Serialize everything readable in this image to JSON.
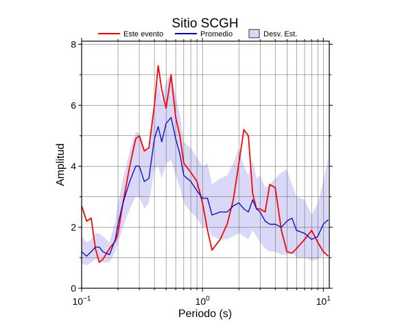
{
  "chart_data": {
    "type": "line",
    "title": "Sitio SCGH",
    "xlabel": "Periodo (s)",
    "ylabel": "Amplitud",
    "xscale": "log",
    "xlim": [
      0.1,
      11.2
    ],
    "ylim": [
      0,
      8.1
    ],
    "grid": true,
    "legend_placement": "top",
    "x_ticks": [
      {
        "value": 0.1,
        "base": "10",
        "exp": "−1"
      },
      {
        "value": 1,
        "base": "10",
        "exp": "0"
      },
      {
        "value": 10,
        "base": "10",
        "exp": "1"
      }
    ],
    "y_ticks": [
      0,
      2,
      4,
      6,
      8
    ],
    "legend": [
      {
        "label": "Este evento",
        "color": "#ff0000",
        "kind": "line"
      },
      {
        "label": "Promedio",
        "color": "#0000cc",
        "kind": "line"
      },
      {
        "label": "Desv. Est.",
        "color": "#d9d9f7",
        "kind": "box"
      }
    ],
    "x": [
      0.1,
      0.11,
      0.12,
      0.13,
      0.14,
      0.15,
      0.17,
      0.19,
      0.2,
      0.22,
      0.25,
      0.28,
      0.3,
      0.33,
      0.36,
      0.4,
      0.43,
      0.46,
      0.5,
      0.55,
      0.6,
      0.65,
      0.7,
      0.8,
      0.9,
      1.0,
      1.1,
      1.2,
      1.4,
      1.6,
      1.8,
      2.0,
      2.2,
      2.4,
      2.6,
      2.8,
      3.0,
      3.3,
      3.6,
      4.0,
      4.5,
      5.0,
      5.5,
      6.0,
      7.0,
      8.0,
      9.0,
      10.0,
      11.0
    ],
    "series": [
      {
        "name": "Este evento",
        "color": "#ff0000",
        "values": [
          2.7,
          2.2,
          2.3,
          1.3,
          0.85,
          0.95,
          1.3,
          1.55,
          1.8,
          2.8,
          4.0,
          4.9,
          5.0,
          4.5,
          4.6,
          6.0,
          7.3,
          6.5,
          5.9,
          7.0,
          5.6,
          5.0,
          4.1,
          3.8,
          3.5,
          2.8,
          1.9,
          1.25,
          1.6,
          2.1,
          2.9,
          4.1,
          5.2,
          5.0,
          3.1,
          2.6,
          2.6,
          2.5,
          3.4,
          3.3,
          1.9,
          1.2,
          1.15,
          1.3,
          1.6,
          1.9,
          1.5,
          1.2,
          1.05
        ]
      },
      {
        "name": "Promedio",
        "color": "#0000cc",
        "values": [
          1.2,
          1.05,
          1.2,
          1.35,
          1.35,
          1.2,
          1.1,
          1.6,
          2.1,
          2.8,
          3.5,
          4.0,
          4.0,
          3.5,
          3.6,
          4.9,
          5.3,
          4.8,
          5.4,
          5.6,
          4.9,
          4.4,
          3.7,
          3.5,
          3.2,
          2.95,
          2.95,
          2.4,
          2.5,
          2.5,
          2.7,
          2.8,
          2.6,
          2.5,
          2.9,
          2.6,
          2.5,
          2.2,
          2.1,
          2.1,
          2.0,
          2.2,
          2.3,
          1.9,
          1.8,
          1.6,
          1.7,
          2.1,
          2.25
        ]
      }
    ],
    "band": {
      "name": "Desv. Est.",
      "color": "#d9d9f7",
      "lower": [
        0.8,
        0.75,
        0.85,
        0.95,
        0.95,
        0.85,
        0.85,
        1.2,
        1.5,
        2.0,
        2.6,
        3.0,
        3.0,
        2.6,
        2.8,
        3.9,
        4.0,
        3.6,
        4.1,
        4.2,
        3.7,
        3.3,
        2.8,
        2.5,
        2.3,
        2.0,
        2.0,
        1.7,
        1.6,
        1.6,
        1.7,
        1.8,
        1.7,
        1.6,
        1.9,
        1.7,
        1.5,
        1.3,
        1.2,
        1.2,
        1.1,
        1.1,
        1.2,
        1.0,
        1.0,
        0.9,
        0.95,
        1.1,
        1.2
      ],
      "upper": [
        1.7,
        1.5,
        1.6,
        1.8,
        1.8,
        1.7,
        1.5,
        2.2,
        2.8,
        3.6,
        4.5,
        5.1,
        5.1,
        4.6,
        4.5,
        6.0,
        6.8,
        6.1,
        6.8,
        7.0,
        6.3,
        5.7,
        4.8,
        4.6,
        4.3,
        4.0,
        4.1,
        3.4,
        3.6,
        3.7,
        4.1,
        4.6,
        4.0,
        3.7,
        4.2,
        3.6,
        3.7,
        3.3,
        3.4,
        3.6,
        3.8,
        3.9,
        3.4,
        3.0,
        2.9,
        2.4,
        2.8,
        3.5,
        4.3
      ]
    }
  }
}
